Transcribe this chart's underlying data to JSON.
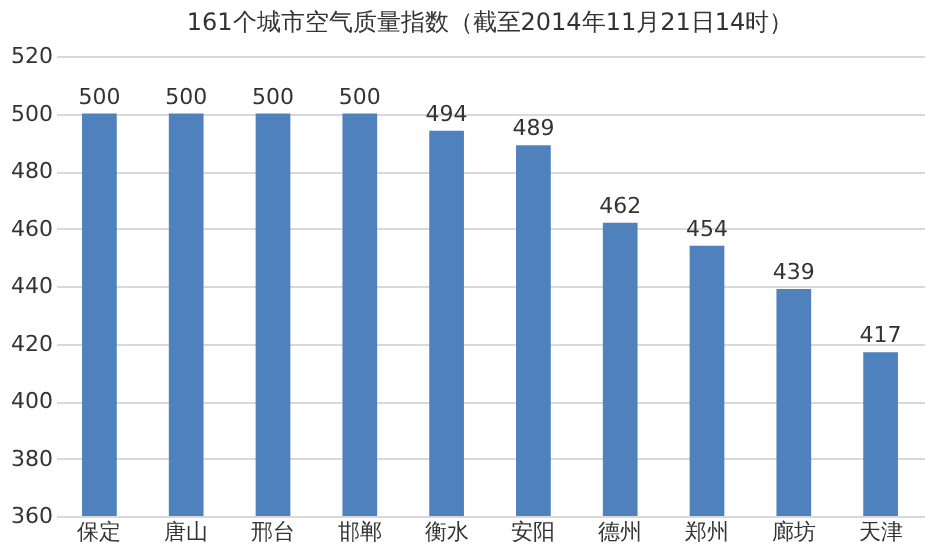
{
  "chart_data": {
    "type": "bar",
    "title": "161个城市空气质量指数（截至2014年11月21日14时）",
    "categories": [
      "保定",
      "唐山",
      "邢台",
      "邯郸",
      "衡水",
      "安阳",
      "德州",
      "郑州",
      "廊坊",
      "天津"
    ],
    "values": [
      500,
      500,
      500,
      500,
      494,
      489,
      462,
      454,
      439,
      417
    ],
    "color": "#4f81bd",
    "ylim": [
      360,
      520
    ],
    "yticks": [
      360,
      380,
      400,
      420,
      440,
      460,
      480,
      500,
      520
    ],
    "grid": "y",
    "data_labels": true
  }
}
